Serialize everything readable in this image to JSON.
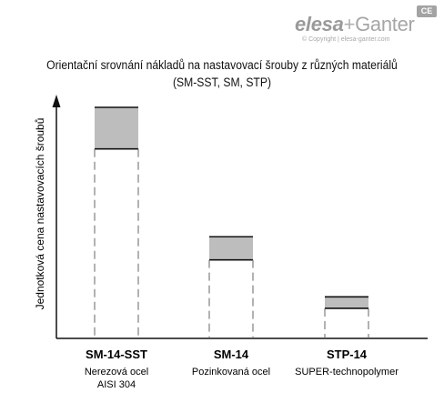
{
  "logo": {
    "elesa": "elesa",
    "plus": "+",
    "ganter": "Ganter",
    "ce_mark": "CE",
    "copyright": "© Copyright | elesa-ganter.com"
  },
  "chart_data": {
    "type": "bar",
    "title": "Orientační srovnání nákladů na nastavovací šrouby z různých materiálů",
    "subtitle": "(SM-SST, SM, STP)",
    "ylabel": "Jednotková cena nastavovacích šroubů",
    "xlabel": "",
    "ylim": [
      0,
      100
    ],
    "grid": false,
    "categories": [
      {
        "code": "SM-14-SST",
        "desc": [
          "Nerezová ocel",
          "AISI 304"
        ]
      },
      {
        "code": "SM-14",
        "desc": [
          "Pozinkovaná ocel"
        ]
      },
      {
        "code": "STP-14",
        "desc": [
          "SUPER-technopolymer"
        ]
      }
    ],
    "series": [
      {
        "values": [
          82,
          34,
          13
        ]
      },
      {
        "values": [
          100,
          44,
          18
        ]
      }
    ],
    "colors": {
      "range_fill": "#bdbdbd",
      "line": "#111111",
      "dashed": "#666666"
    }
  }
}
